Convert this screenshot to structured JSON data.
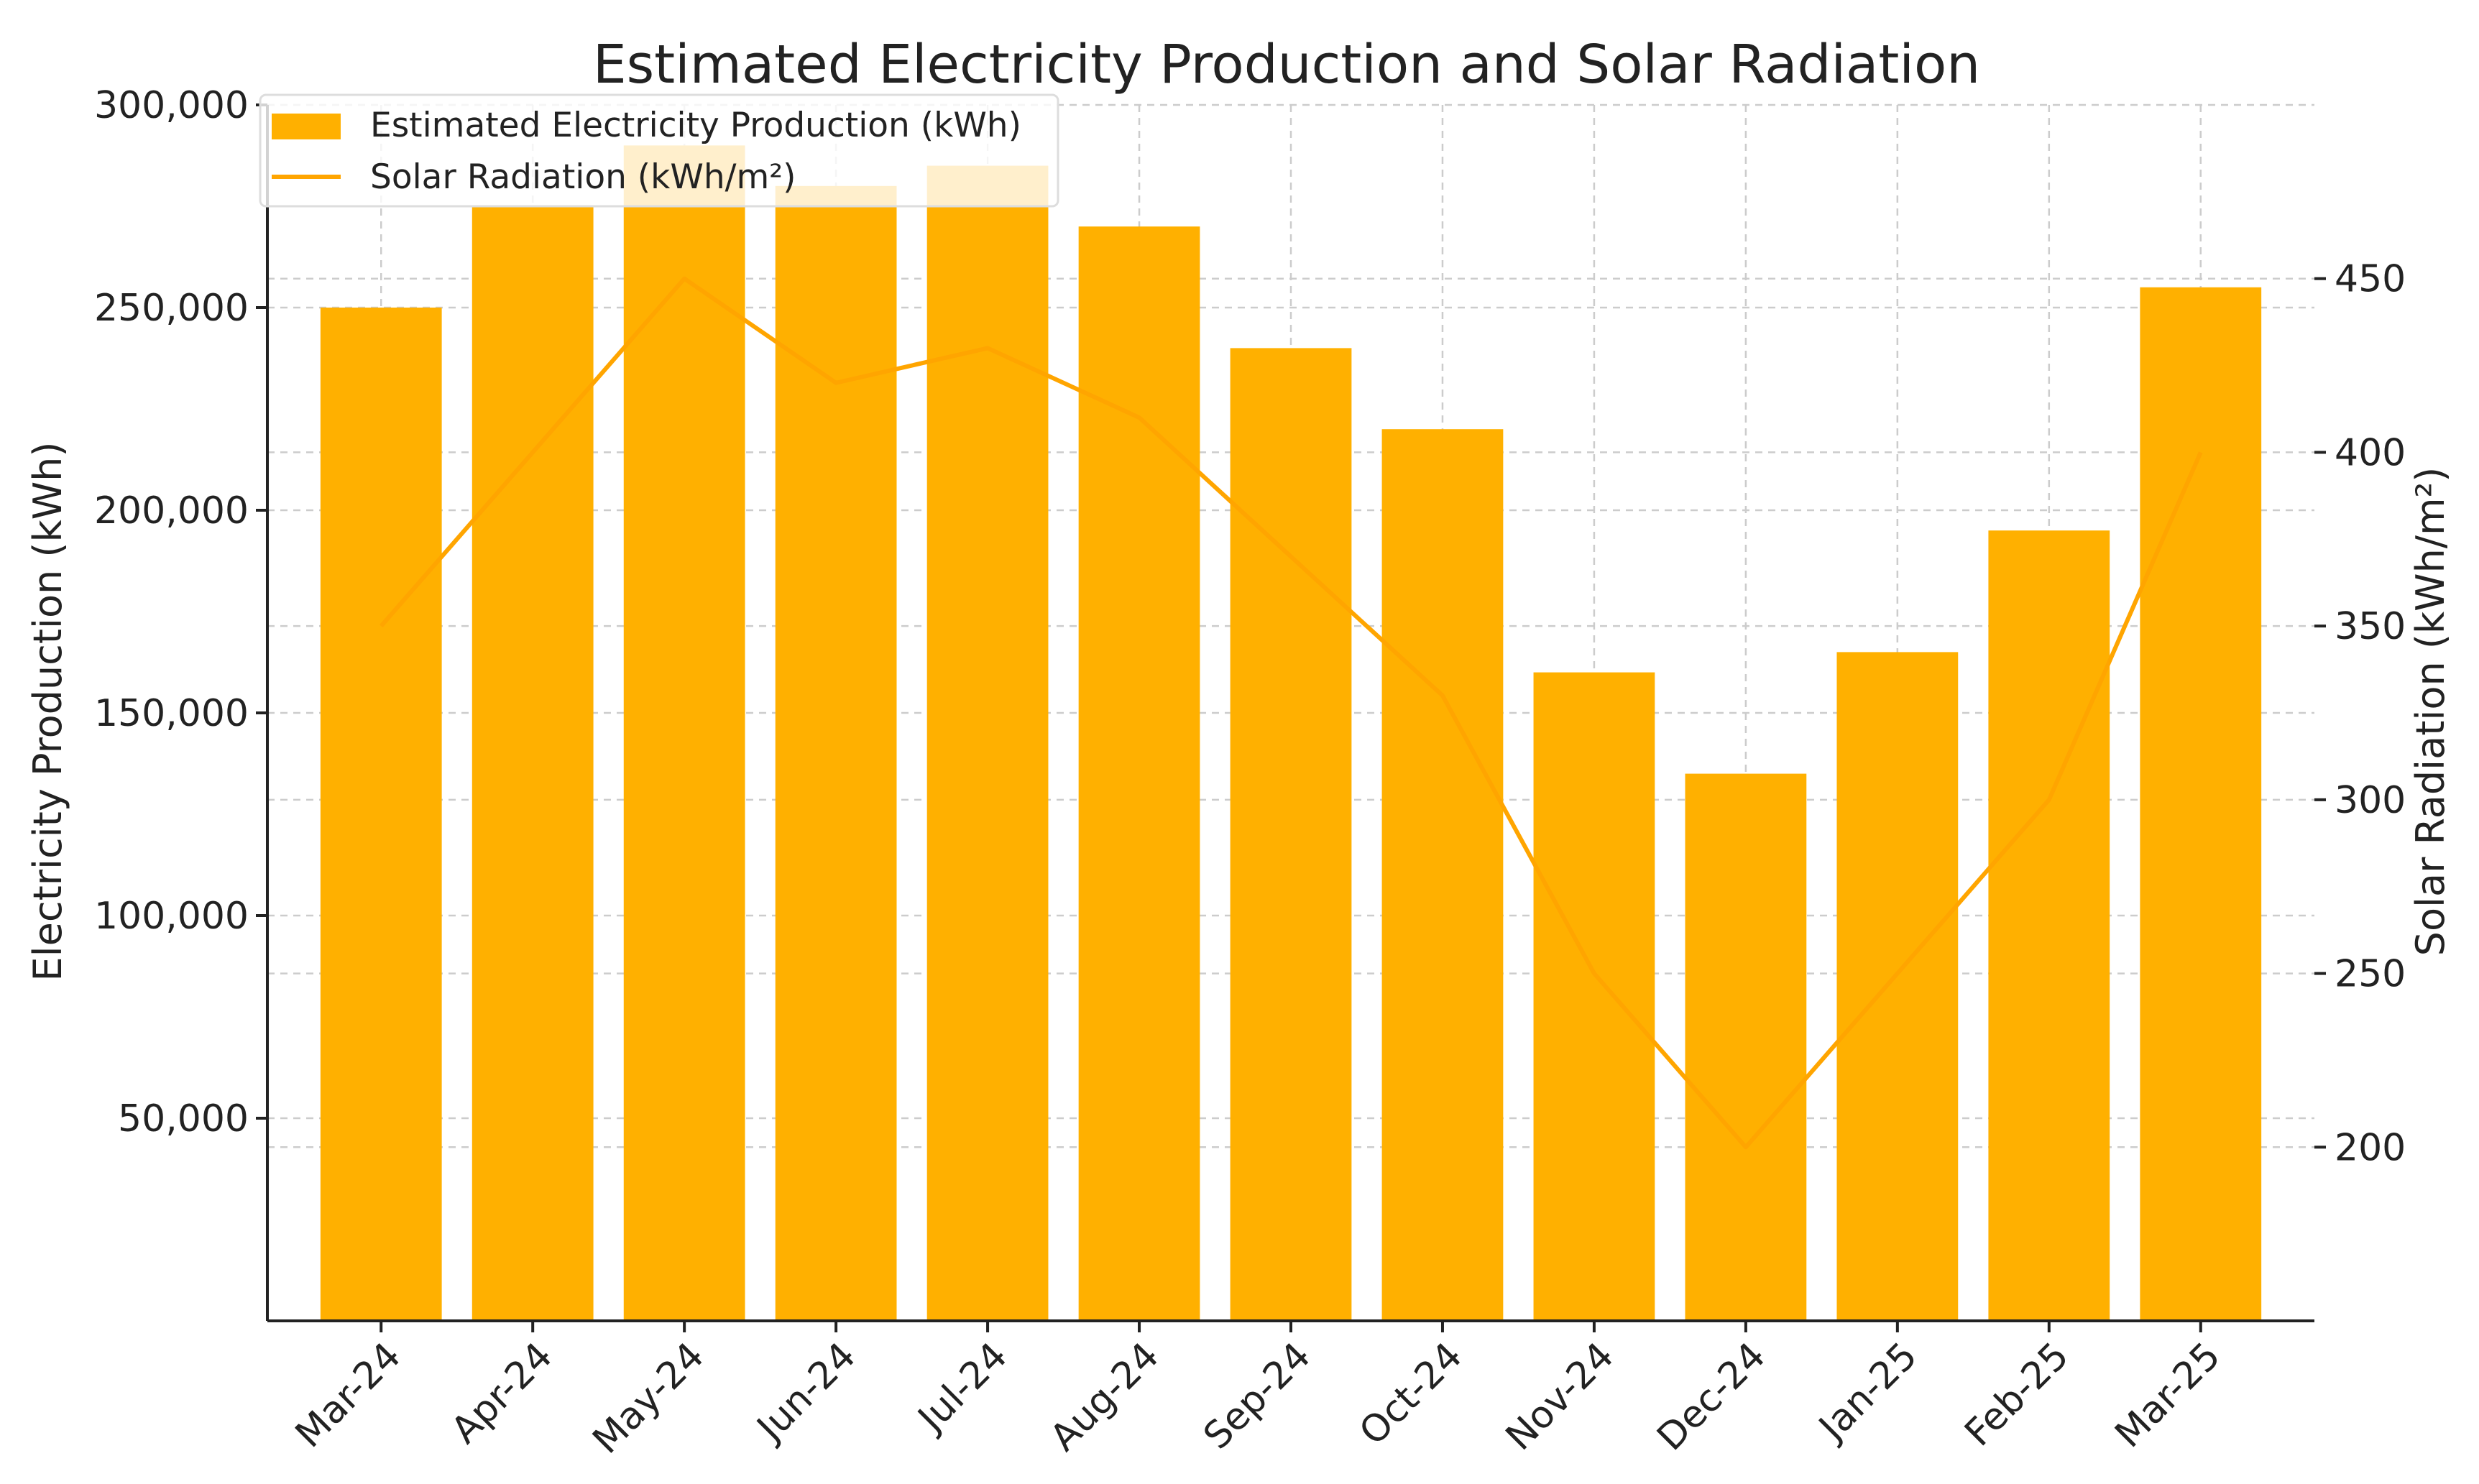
{
  "chart_data": {
    "type": "bar",
    "title": "Estimated Electricity Production and Solar Radiation",
    "categories": [
      "Mar-24",
      "Apr-24",
      "May-24",
      "Jun-24",
      "Jul-24",
      "Aug-24",
      "Sep-24",
      "Oct-24",
      "Nov-24",
      "Dec-24",
      "Jan-25",
      "Feb-25",
      "Mar-25"
    ],
    "series": [
      {
        "name": "Estimated Electricity Production (kWh)",
        "type": "bar",
        "axis": "left",
        "values": [
          250000,
          275000,
          290000,
          280000,
          285000,
          270000,
          240000,
          220000,
          160000,
          135000,
          165000,
          195000,
          255000
        ]
      },
      {
        "name": "Solar Radiation (kWh/m²)",
        "type": "line",
        "axis": "right",
        "values": [
          350,
          400,
          450,
          420,
          430,
          410,
          370,
          330,
          250,
          200,
          250,
          300,
          400
        ]
      }
    ],
    "xlabel": "",
    "ylabel": "Electricity Production (kWh)",
    "y2label": "Solar Radiation (kWh/m²)",
    "ylim": [
      0,
      300000
    ],
    "y2lim": [
      150,
      500
    ],
    "yticks": [
      50000,
      100000,
      150000,
      200000,
      250000,
      300000
    ],
    "yticklabels": [
      "50,000",
      "100,000",
      "150,000",
      "200,000",
      "250,000",
      "300,000"
    ],
    "y2ticks": [
      200,
      250,
      300,
      350,
      400,
      450
    ],
    "y2ticklabels": [
      "200",
      "250",
      "300",
      "350",
      "400",
      "450"
    ],
    "colors": {
      "bar": "#ffb000",
      "line": "#ffa500"
    },
    "grid": true,
    "legend_position": "top-left"
  }
}
